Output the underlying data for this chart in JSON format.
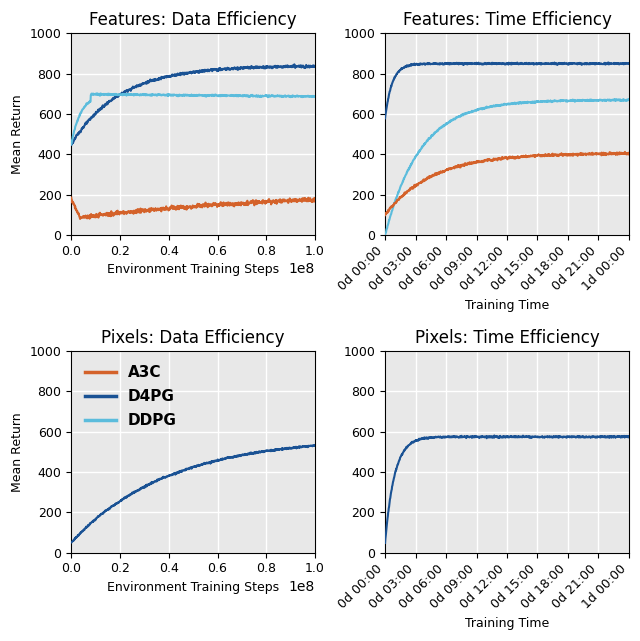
{
  "titles": [
    "Features: Data Efficiency",
    "Features: Time Efficiency",
    "Pixels: Data Efficiency",
    "Pixels: Time Efficiency"
  ],
  "xlabel_steps": "Environment Training Steps",
  "xlabel_time": "Training Time",
  "ylabel": "Mean Return",
  "colors": {
    "A3C": "#d4622a",
    "D4PG": "#1a5294",
    "DDPG": "#5bbcdc"
  },
  "legend_labels": [
    "A3C",
    "D4PG",
    "DDPG"
  ],
  "ylim": [
    0,
    1000
  ],
  "background_color": "#e8e8e8",
  "grid_color": "white",
  "title_fontsize": 12,
  "label_fontsize": 9,
  "tick_fontsize": 9,
  "legend_fontsize": 11
}
